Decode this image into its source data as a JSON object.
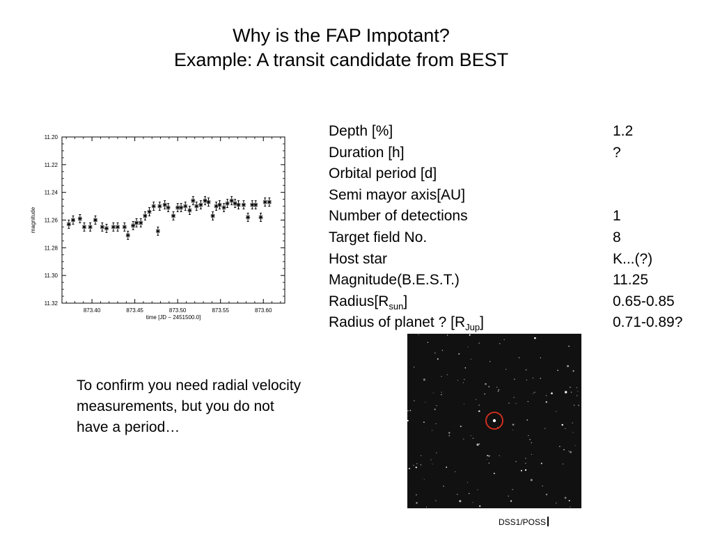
{
  "slide": {
    "title_line1": "Why is the FAP Impotant?",
    "title_line2": "Example: A transit candidate from BEST"
  },
  "params": [
    {
      "label": "Depth [%]",
      "value": "1.2"
    },
    {
      "label": "Duration [h]",
      "value": "?"
    },
    {
      "label": "Orbital period [d]",
      "value": ""
    },
    {
      "label": "Semi mayor axis[AU]",
      "value": ""
    },
    {
      "label": "Number of detections",
      "value": "1"
    },
    {
      "label": "Target field No.",
      "value": "8"
    },
    {
      "label": "Host star",
      "value": "K...(?)"
    },
    {
      "label": "Magnitude(B.E.S.T.)",
      "value": "11.25"
    },
    {
      "label": "Radius[R",
      "sub": "sun",
      "suffix": "]",
      "value": "0.65-0.85"
    },
    {
      "label": "Radius of planet ? [R",
      "sub": "Jup",
      "suffix": "]",
      "value": "0.71-0.89?"
    }
  ],
  "note": "To confirm you need radial velocity measurements, but you do not have a period…",
  "image_credit": "DSS1/POSS",
  "marker_color": "#e0301e",
  "chart_data": {
    "type": "scatter",
    "xlabel": "time [JD − 2451500.0]",
    "ylabel": "magnitude",
    "xlim": [
      873.365,
      873.625
    ],
    "ylim": [
      11.32,
      11.2
    ],
    "xticks": [
      "873.40",
      "873.45",
      "873.50",
      "873.55",
      "873.60"
    ],
    "xtick_values": [
      873.4,
      873.45,
      873.5,
      873.55,
      873.6
    ],
    "yticks": [
      "11.20",
      "11.22",
      "11.24",
      "11.26",
      "11.28",
      "11.30",
      "11.32"
    ],
    "ytick_values": [
      11.2,
      11.22,
      11.24,
      11.26,
      11.28,
      11.3,
      11.32
    ],
    "error": 0.003,
    "x": [
      873.373,
      873.378,
      873.386,
      873.391,
      873.398,
      873.404,
      873.412,
      873.417,
      873.425,
      873.43,
      873.438,
      873.442,
      873.448,
      873.452,
      873.457,
      873.462,
      873.467,
      873.472,
      873.477,
      873.479,
      873.485,
      873.489,
      873.495,
      873.5,
      873.504,
      873.509,
      873.514,
      873.518,
      873.522,
      873.527,
      873.532,
      873.536,
      873.541,
      873.545,
      873.549,
      873.554,
      873.558,
      873.563,
      873.567,
      873.571,
      873.577,
      873.582,
      873.587,
      873.591,
      873.597,
      873.602,
      873.607
    ],
    "y": [
      11.263,
      11.26,
      11.259,
      11.265,
      11.265,
      11.26,
      11.265,
      11.266,
      11.265,
      11.265,
      11.265,
      11.271,
      11.264,
      11.262,
      11.262,
      11.257,
      11.254,
      11.25,
      11.268,
      11.25,
      11.249,
      11.251,
      11.257,
      11.251,
      11.251,
      11.25,
      11.253,
      11.246,
      11.25,
      11.249,
      11.246,
      11.247,
      11.257,
      11.25,
      11.249,
      11.251,
      11.248,
      11.246,
      11.248,
      11.249,
      11.249,
      11.258,
      11.249,
      11.249,
      11.258,
      11.247,
      11.247
    ]
  }
}
